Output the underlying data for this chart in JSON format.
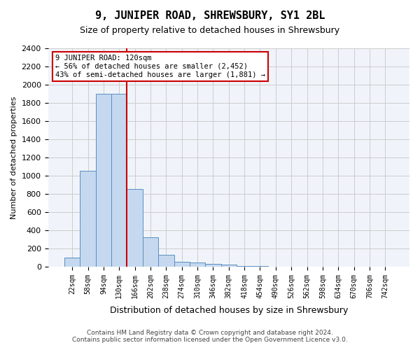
{
  "title": "9, JUNIPER ROAD, SHREWSBURY, SY1 2BL",
  "subtitle": "Size of property relative to detached houses in Shrewsbury",
  "xlabel": "Distribution of detached houses by size in Shrewsbury",
  "ylabel": "Number of detached properties",
  "bar_color": "#c5d8f0",
  "bar_edge_color": "#5a8fc0",
  "bin_labels": [
    "22sqm",
    "58sqm",
    "94sqm",
    "130sqm",
    "166sqm",
    "202sqm",
    "238sqm",
    "274sqm",
    "310sqm",
    "346sqm",
    "382sqm",
    "418sqm",
    "454sqm",
    "490sqm",
    "526sqm",
    "562sqm",
    "598sqm",
    "634sqm",
    "670sqm",
    "706sqm",
    "742sqm"
  ],
  "bar_heights": [
    100,
    1050,
    1900,
    1900,
    850,
    320,
    130,
    55,
    45,
    30,
    20,
    10,
    5,
    3,
    2,
    2,
    1,
    1,
    1,
    0,
    0
  ],
  "property_line_x": 3,
  "annotation_text": "9 JUNIPER ROAD: 120sqm\n← 56% of detached houses are smaller (2,452)\n43% of semi-detached houses are larger (1,881) →",
  "annotation_box_color": "#ffffff",
  "annotation_box_edge_color": "#cc0000",
  "annotation_text_color": "#000000",
  "red_line_color": "#cc0000",
  "grid_color": "#cccccc",
  "background_color": "#f0f4fa",
  "ylim": [
    0,
    2400
  ],
  "footer_line1": "Contains HM Land Registry data © Crown copyright and database right 2024.",
  "footer_line2": "Contains public sector information licensed under the Open Government Licence v3.0."
}
